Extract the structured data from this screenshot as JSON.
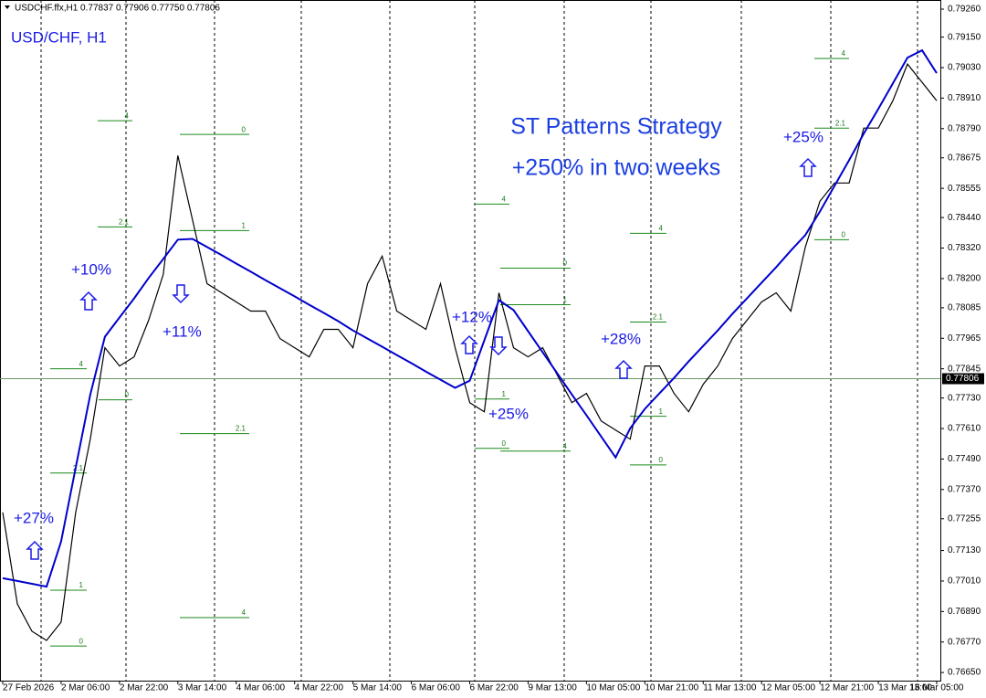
{
  "chart_data": {
    "type": "line",
    "header": "USDCHF.ffx,H1  0.77837 0.77906 0.77750 0.77806",
    "title": "USD/CHF, H1",
    "headline": [
      "ST Patterns Strategy",
      "+250% in two weeks"
    ],
    "annotations": [
      "+27%",
      "+10%",
      "+11%",
      "+12%",
      "+25%",
      "+28%",
      "+25%"
    ],
    "categories": [
      "27 Feb 2026",
      null,
      null,
      null,
      "2 Mar 06:00",
      null,
      null,
      null,
      "2 Mar 22:00",
      null,
      null,
      null,
      "3 Mar 14:00",
      null,
      null,
      null,
      "4 Mar 06:00",
      null,
      null,
      null,
      "4 Mar 22:00",
      null,
      null,
      null,
      "5 Mar 14:00",
      null,
      null,
      null,
      "6 Mar 06:00",
      null,
      null,
      null,
      "6 Mar 22:00",
      null,
      null,
      null,
      "9 Mar 13:00",
      null,
      null,
      null,
      "10 Mar 05:00",
      null,
      null,
      null,
      "10 Mar 21:00",
      null,
      null,
      null,
      "11 Mar 13:00",
      null,
      null,
      null,
      "12 Mar 05:00",
      null,
      null,
      null,
      "12 Mar 21:00",
      null,
      null,
      null,
      "13 Mar 13:00",
      null,
      null,
      null,
      "16 Mar 05:00"
    ],
    "series": [
      {
        "color": "#000000",
        "values": [
          0.7728,
          0.7692,
          0.76812,
          0.76776,
          0.76848,
          0.7728,
          0.77568,
          0.77928,
          0.77856,
          0.77892,
          0.78036,
          0.78216,
          0.78684,
          0.78432,
          0.7818,
          0.78144,
          0.78108,
          0.78072,
          0.78072,
          0.77964,
          0.77928,
          0.77892,
          0.78,
          0.78,
          0.77928,
          0.7818,
          0.78288,
          0.78072,
          0.78036,
          0.78,
          0.7818,
          0.77928,
          0.77712,
          0.77676,
          0.78144,
          0.77928,
          0.77892,
          0.77928,
          0.7782,
          0.77712,
          0.77748,
          0.7764,
          0.77604,
          0.77568,
          0.77856,
          0.77856,
          0.77748,
          0.77676,
          0.77784,
          0.77856,
          0.77964,
          0.78036,
          0.78108,
          0.78144,
          0.78072,
          0.78324,
          0.78504,
          0.78576,
          0.78576,
          0.78792,
          0.78792,
          0.789,
          0.79044,
          0.78972,
          0.789
        ]
      },
      {
        "color": "#0000cc",
        "values": [
          0.77021,
          0.7701,
          0.76999,
          0.76988,
          0.77165,
          0.77456,
          0.77744,
          0.77971,
          0.78047,
          0.78122,
          0.78202,
          0.78277,
          0.78353,
          0.78356,
          0.78324,
          0.78292,
          0.78259,
          0.78227,
          0.78194,
          0.78162,
          0.7813,
          0.78097,
          0.78065,
          0.78032,
          0.77996,
          0.77964,
          0.77932,
          0.77899,
          0.77867,
          0.77834,
          0.77802,
          0.7777,
          0.77798,
          0.77957,
          0.78115,
          0.78076,
          0.77993,
          0.7791,
          0.77827,
          0.77744,
          0.77662,
          0.77579,
          0.77496,
          0.77611,
          0.77687,
          0.77748,
          0.77809,
          0.77874,
          0.77935,
          0.77996,
          0.78061,
          0.78122,
          0.78184,
          0.78245,
          0.7831,
          0.78371,
          0.78464,
          0.78565,
          0.78666,
          0.7877,
          0.78868,
          0.78968,
          0.79069,
          0.79098,
          0.79008
        ]
      }
    ],
    "ylim": [
      0.76618,
      0.79296
    ],
    "yticks": [
      {
        "value": 0.7926,
        "label": "0.79260"
      },
      {
        "value": 0.7915,
        "label": "0.79150"
      },
      {
        "value": 0.7903,
        "label": "0.79030"
      },
      {
        "value": 0.7891,
        "label": "0.78910"
      },
      {
        "value": 0.7879,
        "label": "0.78790"
      },
      {
        "value": 0.78675,
        "label": "0.78675"
      },
      {
        "value": 0.78555,
        "label": "0.78555"
      },
      {
        "value": 0.7844,
        "label": "0.78440"
      },
      {
        "value": 0.7832,
        "label": "0.78320"
      },
      {
        "value": 0.782,
        "label": "0.78200"
      },
      {
        "value": 0.78085,
        "label": "0.78085"
      },
      {
        "value": 0.77965,
        "label": "0.77965"
      },
      {
        "value": 0.77845,
        "label": "0.77845"
      },
      {
        "value": 0.7773,
        "label": "0.77730"
      },
      {
        "value": 0.7761,
        "label": "0.77610"
      },
      {
        "value": 0.7749,
        "label": "0.77490"
      },
      {
        "value": 0.7737,
        "label": "0.77370"
      },
      {
        "value": 0.77255,
        "label": "0.77255"
      },
      {
        "value": 0.7713,
        "label": "0.77130"
      },
      {
        "value": 0.7701,
        "label": "0.77010"
      },
      {
        "value": 0.7689,
        "label": "0.76890"
      },
      {
        "value": 0.7677,
        "label": "0.76770"
      },
      {
        "value": 0.7665,
        "label": "0.76650"
      }
    ],
    "current_price": {
      "value": 0.77806,
      "label": "0.77806"
    },
    "levels": [
      {
        "label": "4",
        "value": 0.78821
      },
      {
        "label": "2.1",
        "value": 0.78403
      },
      {
        "label": "0",
        "value": 0.78767
      },
      {
        "label": "1",
        "value": 0.78389
      },
      {
        "label": "2.1",
        "value": 0.7759
      },
      {
        "label": "4",
        "value": 0.76866
      },
      {
        "label": "4",
        "value": 0.77845
      },
      {
        "label": "0",
        "value": 0.77723
      },
      {
        "label": "2.1",
        "value": 0.77435
      },
      {
        "label": "1",
        "value": 0.76974
      },
      {
        "label": "0",
        "value": 0.76754
      },
      {
        "label": "4",
        "value": 0.78493
      },
      {
        "label": "1",
        "value": 0.77726
      },
      {
        "label": "0",
        "value": 0.77532
      },
      {
        "label": "0",
        "value": 0.78241
      },
      {
        "label": "1",
        "value": 0.78097
      },
      {
        "label": "4",
        "value": 0.77521
      },
      {
        "label": "4",
        "value": 0.78378
      },
      {
        "label": "2.1",
        "value": 0.78029
      },
      {
        "label": "1",
        "value": 0.77658
      },
      {
        "label": "0",
        "value": 0.77467
      },
      {
        "label": "4",
        "value": 0.79066
      },
      {
        "label": "2.1",
        "value": 0.78792
      },
      {
        "label": "0",
        "value": 0.78353
      }
    ]
  }
}
